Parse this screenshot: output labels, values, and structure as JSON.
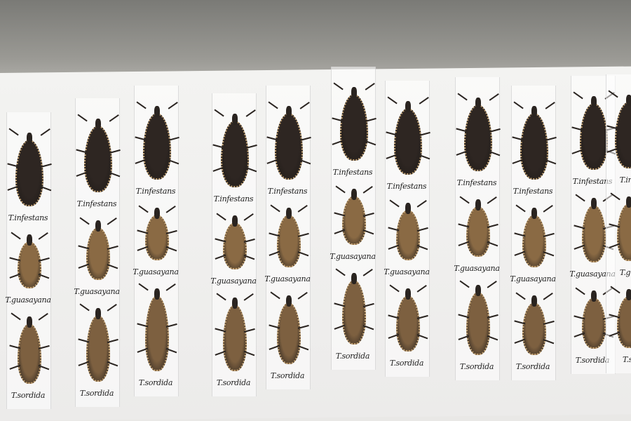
{
  "colors": {
    "infestans": "#2e2622",
    "guasayana": "#8a6a44",
    "sordida": "#7d6040",
    "wall": "#8a8984",
    "board": "#f1f0ee"
  },
  "columns": [
    {
      "labels": [
        "T.infestans",
        "T.guasayana",
        "T.sordida"
      ]
    },
    {
      "labels": [
        "T.infestans",
        "T.guasayana",
        "T.sordida"
      ]
    },
    {
      "labels": [
        "T.infestans",
        "T.guasayana",
        "T.sordida"
      ]
    },
    {
      "labels": [
        "T.infestans",
        "T.guasayana",
        "T.sordida"
      ]
    },
    {
      "labels": [
        "T.infestans",
        "T.guasayana",
        "T.sordida"
      ]
    },
    {
      "labels": [
        "T.infestans",
        "T.guasayana",
        "T.sordida"
      ]
    },
    {
      "labels": [
        "T.infestans",
        "T.guasayana",
        "T.sordida"
      ]
    },
    {
      "labels": [
        "T.infestans",
        "T.guasayana",
        "T.sordida"
      ]
    },
    {
      "labels": [
        "T.infestans",
        "T.guasayana",
        "T.sordida"
      ]
    },
    {
      "labels": [
        "T.infestans",
        "T.guasayana",
        "T.sordida"
      ]
    },
    {
      "labels": [
        "T.inf",
        "T.gu",
        "T.s"
      ]
    }
  ]
}
